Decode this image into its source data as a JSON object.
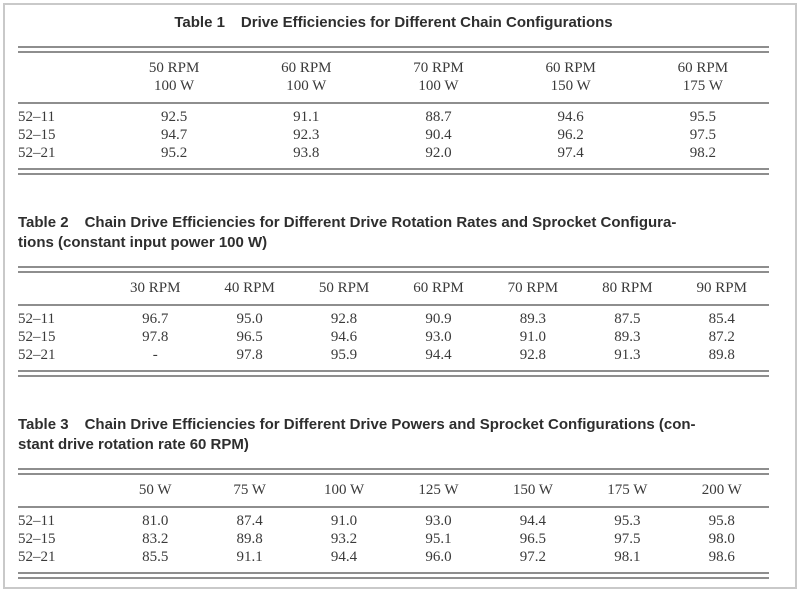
{
  "document": {
    "background": "#ffffff",
    "frame_color": "#c9c9c9",
    "rule_color": "#8e8e8e",
    "text_color": "#3a3a3a",
    "title_color": "#2e2e2e"
  },
  "tables": [
    {
      "label": "Table 1",
      "caption": "Drive Efficiencies for Different Chain Configurations",
      "columns": [
        [
          "50 RPM",
          "100 W"
        ],
        [
          "60 RPM",
          "100 W"
        ],
        [
          "70 RPM",
          "100 W"
        ],
        [
          "60 RPM",
          "150 W"
        ],
        [
          "60 RPM",
          "175 W"
        ]
      ],
      "rows": [
        {
          "label": "52–11",
          "values": [
            "92.5",
            "91.1",
            "88.7",
            "94.6",
            "95.5"
          ]
        },
        {
          "label": "52–15",
          "values": [
            "94.7",
            "92.3",
            "90.4",
            "96.2",
            "97.5"
          ]
        },
        {
          "label": "52–21",
          "values": [
            "95.2",
            "93.8",
            "92.0",
            "97.4",
            "98.2"
          ]
        }
      ]
    },
    {
      "label": "Table 2",
      "caption_line1": "Chain Drive Efficiencies for Different Drive Rotation Rates and Sprocket Configura-",
      "caption_line2": "tions (constant input power 100 W)",
      "columns": [
        [
          "30 RPM"
        ],
        [
          "40 RPM"
        ],
        [
          "50 RPM"
        ],
        [
          "60 RPM"
        ],
        [
          "70 RPM"
        ],
        [
          "80 RPM"
        ],
        [
          "90 RPM"
        ]
      ],
      "rows": [
        {
          "label": "52–11",
          "values": [
            "96.7",
            "95.0",
            "92.8",
            "90.9",
            "89.3",
            "87.5",
            "85.4"
          ]
        },
        {
          "label": "52–15",
          "values": [
            "97.8",
            "96.5",
            "94.6",
            "93.0",
            "91.0",
            "89.3",
            "87.2"
          ]
        },
        {
          "label": "52–21",
          "values": [
            "-",
            "97.8",
            "95.9",
            "94.4",
            "92.8",
            "91.3",
            "89.8"
          ]
        }
      ]
    },
    {
      "label": "Table 3",
      "caption_line1": "Chain Drive Efficiencies for Different Drive Powers and Sprocket Configurations (con-",
      "caption_line2": "stant drive rotation rate 60 RPM)",
      "columns": [
        [
          "50 W"
        ],
        [
          "75 W"
        ],
        [
          "100 W"
        ],
        [
          "125 W"
        ],
        [
          "150 W"
        ],
        [
          "175 W"
        ],
        [
          "200 W"
        ]
      ],
      "rows": [
        {
          "label": "52–11",
          "values": [
            "81.0",
            "87.4",
            "91.0",
            "93.0",
            "94.4",
            "95.3",
            "95.8"
          ]
        },
        {
          "label": "52–15",
          "values": [
            "83.2",
            "89.8",
            "93.2",
            "95.1",
            "96.5",
            "97.5",
            "98.0"
          ]
        },
        {
          "label": "52–21",
          "values": [
            "85.5",
            "91.1",
            "94.4",
            "96.0",
            "97.2",
            "98.1",
            "98.6"
          ]
        }
      ]
    }
  ]
}
